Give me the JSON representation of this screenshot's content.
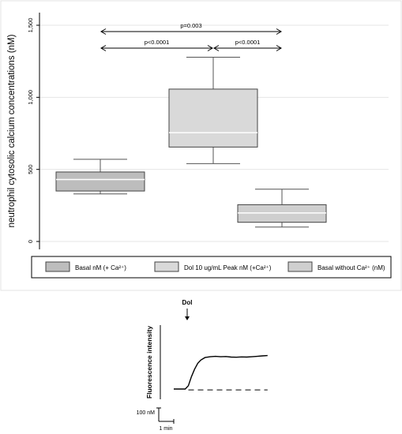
{
  "chart_data": [
    {
      "type": "box",
      "ylabel": "neutrophil cytosolic calcium concentrations (nM)",
      "ylim": [
        -40,
        1550
      ],
      "yticks": [
        0,
        500,
        1000,
        1500
      ],
      "ytick_labels": [
        "0",
        "500",
        "1,000",
        "1,500"
      ],
      "grid": true,
      "legend_position": "bottom",
      "series": [
        {
          "name": "Basal nM (+ Ca²⁺)",
          "color": "#bdbdbd",
          "whisker_low": 330,
          "q1": 350,
          "median": 430,
          "q3": 482,
          "whisker_high": 570
        },
        {
          "name": "Dol 10 ug/mL Peak nM (+Ca²⁺)",
          "color": "#d9d9d9",
          "whisker_low": 540,
          "q1": 655,
          "median": 755,
          "q3": 1057,
          "whisker_high": 1278
        },
        {
          "name": "Basal without Ca²⁺ (nM)",
          "color": "#cfcfcf",
          "whisker_low": 100,
          "q1": 133,
          "median": 198,
          "q3": 255,
          "whisker_high": 363
        }
      ],
      "comparisons": [
        {
          "from": 0,
          "to": 1,
          "label": "p<0.0001",
          "level": 1
        },
        {
          "from": 1,
          "to": 2,
          "label": "p<0.0001",
          "level": 1
        },
        {
          "from": 0,
          "to": 2,
          "label": "p=0.003",
          "level": 2
        }
      ]
    },
    {
      "type": "line",
      "ylabel": "Fluorescence intensity",
      "annotation": "Dol",
      "scale_y_label": "100 nM",
      "scale_x_label": "1 min",
      "series": [
        {
          "name": "",
          "style": "solid",
          "x": [
            0,
            0.3,
            1.1,
            1.4,
            1.7,
            2.0,
            2.3,
            2.6,
            3.0,
            3.5,
            4.0,
            4.5,
            5.0,
            5.5,
            6.0,
            6.5,
            7.0,
            7.5,
            8.0,
            8.5,
            9.0
          ],
          "y": [
            0,
            0,
            0,
            0.2,
            0.75,
            1.2,
            1.55,
            1.75,
            1.9,
            1.95,
            1.97,
            1.95,
            1.96,
            1.93,
            1.92,
            1.94,
            1.93,
            1.95,
            1.97,
            2.0,
            2.02
          ]
        },
        {
          "name": "",
          "style": "dashed",
          "x": [
            1.4,
            9.0
          ],
          "y": [
            -0.05,
            -0.05
          ]
        }
      ],
      "dol_x": 1.0
    }
  ]
}
